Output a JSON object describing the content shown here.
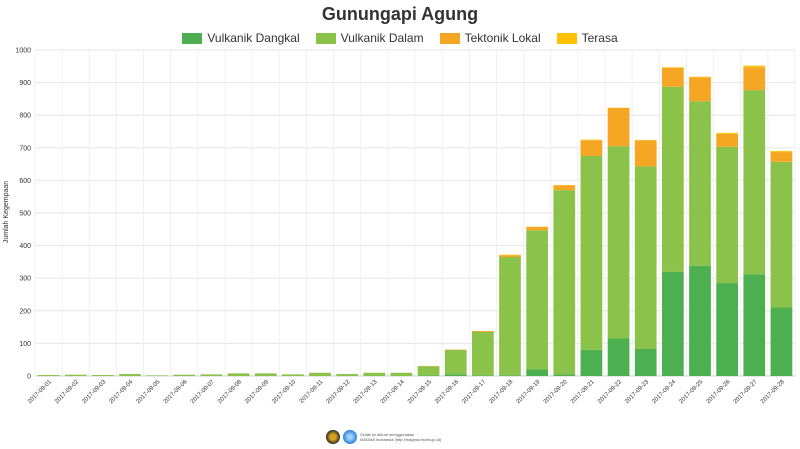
{
  "chart_data": {
    "type": "bar",
    "stacked": true,
    "title": "Gunungapi Agung",
    "xlabel": "",
    "ylabel": "Jumlah Kegempaan",
    "ylim": [
      0,
      1000
    ],
    "yticks": [
      0,
      100,
      200,
      300,
      400,
      500,
      600,
      700,
      800,
      900,
      1000
    ],
    "grid": true,
    "legend_position": "top",
    "categories": [
      "2017-09-01",
      "2017-09-02",
      "2017-09-03",
      "2017-09-04",
      "2017-09-05",
      "2017-09-06",
      "2017-09-07",
      "2017-09-08",
      "2017-09-09",
      "2017-09-10",
      "2017-09-11",
      "2017-09-12",
      "2017-09-13",
      "2017-09-14",
      "2017-09-15",
      "2017-09-16",
      "2017-09-17",
      "2017-09-18",
      "2017-09-19",
      "2017-09-20",
      "2017-09-21",
      "2017-09-22",
      "2017-09-23",
      "2017-09-24",
      "2017-09-25",
      "2017-09-26",
      "2017-09-27",
      "2017-09-28"
    ],
    "series": [
      {
        "name": "Vulkanik Dangkal",
        "color": "#4caf50",
        "values": [
          0,
          0,
          0,
          0,
          0,
          0,
          0,
          0,
          0,
          0,
          0,
          0,
          0,
          0,
          2,
          5,
          2,
          2,
          20,
          5,
          80,
          115,
          83,
          320,
          338,
          285,
          312,
          210
        ]
      },
      {
        "name": "Vulkanik Dalam",
        "color": "#8bc34a",
        "values": [
          3,
          4,
          3,
          6,
          2,
          4,
          5,
          8,
          8,
          5,
          10,
          6,
          10,
          10,
          28,
          75,
          133,
          363,
          427,
          565,
          595,
          590,
          560,
          567,
          505,
          418,
          565,
          447
        ]
      },
      {
        "name": "Tektonik Lokal",
        "color": "#f5a623",
        "values": [
          0,
          0,
          0,
          0,
          0,
          0,
          0,
          0,
          0,
          0,
          0,
          0,
          0,
          0,
          1,
          1,
          3,
          5,
          10,
          15,
          48,
          117,
          80,
          58,
          73,
          40,
          70,
          30
        ]
      },
      {
        "name": "Terasa",
        "color": "#ffc107",
        "values": [
          0,
          0,
          0,
          0,
          0,
          0,
          0,
          0,
          0,
          0,
          0,
          0,
          0,
          0,
          0,
          0,
          0,
          2,
          1,
          1,
          2,
          1,
          1,
          2,
          2,
          3,
          5,
          3
        ]
      }
    ]
  },
  "credit": {
    "line1": "Grafik ini dibuat menggunakan",
    "line2": "MAGMA Indonesia (http://magma.esdm.go.id)"
  }
}
